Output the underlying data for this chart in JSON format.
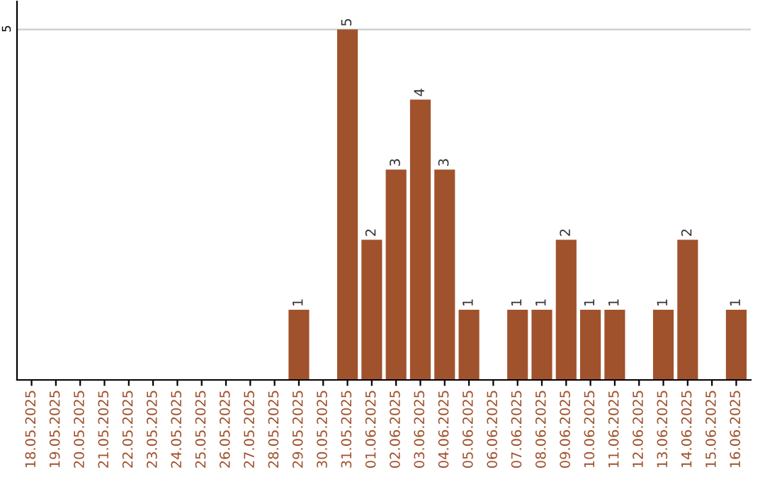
{
  "chart_data": {
    "type": "bar",
    "categories": [
      "18.05.2025",
      "19.05.2025",
      "20.05.2025",
      "21.05.2025",
      "22.05.2025",
      "23.05.2025",
      "24.05.2025",
      "25.05.2025",
      "26.05.2025",
      "27.05.2025",
      "28.05.2025",
      "29.05.2025",
      "30.05.2025",
      "31.05.2025",
      "01.06.2025",
      "02.06.2025",
      "03.06.2025",
      "04.06.2025",
      "05.06.2025",
      "06.06.2025",
      "07.06.2025",
      "08.06.2025",
      "09.06.2025",
      "10.06.2025",
      "11.06.2025",
      "12.06.2025",
      "13.06.2025",
      "14.06.2025",
      "15.06.2025",
      "16.06.2025"
    ],
    "values": [
      0,
      0,
      0,
      0,
      0,
      0,
      0,
      0,
      0,
      0,
      0,
      1,
      0,
      5,
      2,
      3,
      4,
      3,
      1,
      0,
      1,
      1,
      2,
      1,
      1,
      0,
      1,
      2,
      0,
      1
    ],
    "value_labels": [
      null,
      null,
      null,
      null,
      null,
      null,
      null,
      null,
      null,
      null,
      null,
      "1",
      null,
      "5",
      "2",
      "3",
      "4",
      "3",
      "1",
      null,
      "1",
      "1",
      "2",
      "1",
      "1",
      null,
      "1",
      "2",
      null,
      "1"
    ],
    "color": "#a0522d",
    "ylim": [
      0,
      5.4
    ],
    "yticks": [
      5
    ],
    "grid": "y",
    "legend": false
  }
}
